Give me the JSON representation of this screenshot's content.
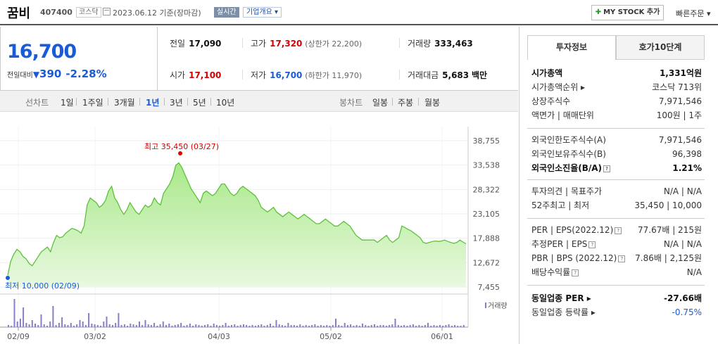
{
  "header": {
    "name": "꿈비",
    "code": "407400",
    "market": "코스닥",
    "date": "2023.06.12 기준(장마감)",
    "realtime": "실시간",
    "company_info": "기업개요 ▾",
    "mystock": "MY STOCK 추가",
    "quick_order": "빠른주문 ▾"
  },
  "price": {
    "current": "16,700",
    "change_label": "전일대비",
    "change_arrow": "▼",
    "change_value": "390",
    "change_pct": "-2.28%"
  },
  "stats": {
    "prev_label": "전일",
    "prev": "17,090",
    "high_label": "고가",
    "high": "17,320",
    "upper_limit": "(상한가 22,200)",
    "volume_label": "거래량",
    "volume": "333,463",
    "open_label": "시가",
    "open": "17,100",
    "low_label": "저가",
    "low": "16,700",
    "lower_limit": "(하한가 11,970)",
    "amount_label": "거래대금",
    "amount": "5,683",
    "amount_unit": "백만"
  },
  "periods": {
    "line_label": "선차트",
    "items": [
      "1일",
      "1주일",
      "3개월",
      "1년",
      "3년",
      "5년",
      "10년"
    ],
    "selected": "1년",
    "candle_label": "봉차트",
    "candle_items": [
      "일봉",
      "주봉",
      "월봉"
    ]
  },
  "chart_data": {
    "type": "area",
    "x_ticks": [
      "02/09",
      "03/02",
      "04/03",
      "05/02",
      "06/01"
    ],
    "y_ticks": [
      "38,755",
      "33,538",
      "28,322",
      "23,105",
      "17,888",
      "12,672",
      "7,455"
    ],
    "ylim": [
      7455,
      38755
    ],
    "max_label": "최고 35,450 (03/27)",
    "min_label": "최저 10,000 (02/09)",
    "volume_label": "거래량",
    "values": [
      10000,
      13000,
      14500,
      15500,
      15000,
      14000,
      13500,
      12500,
      12000,
      13000,
      14000,
      15000,
      15500,
      16000,
      15000,
      17000,
      18500,
      18000,
      18200,
      19000,
      19500,
      20000,
      19800,
      19500,
      19000,
      20500,
      25000,
      26500,
      26000,
      25500,
      24500,
      25000,
      26000,
      28000,
      29000,
      26500,
      25500,
      24000,
      23000,
      24000,
      25500,
      24500,
      23500,
      23000,
      24000,
      25000,
      24500,
      25000,
      26500,
      25500,
      25000,
      27500,
      28500,
      29500,
      31000,
      33500,
      34000,
      33000,
      31500,
      30000,
      28500,
      27500,
      26500,
      25500,
      27500,
      28000,
      27500,
      27000,
      27500,
      28500,
      29500,
      29500,
      28500,
      27500,
      27000,
      27500,
      28500,
      29000,
      28500,
      28000,
      27500,
      27000,
      26000,
      24500,
      24000,
      23500,
      24000,
      24500,
      23500,
      23000,
      22500,
      23000,
      23500,
      23000,
      22500,
      22000,
      22500,
      23000,
      22500,
      22000,
      21500,
      21000,
      21000,
      21500,
      22000,
      21500,
      21000,
      20500,
      20500,
      21000,
      21500,
      21000,
      20500,
      19500,
      18500,
      18000,
      17500,
      17500,
      17500,
      17500,
      17500,
      17000,
      17500,
      18000,
      18500,
      17500,
      17000,
      17500,
      18000,
      20500,
      20200,
      19800,
      19500,
      19000,
      18500,
      18000,
      17000,
      16800,
      17000,
      17200,
      17300,
      17200,
      17300,
      17500,
      17200,
      17000,
      16800,
      17000,
      17500,
      17090,
      16700
    ]
  },
  "right_panel": {
    "tab1": "투자정보",
    "tab2": "호가10단계",
    "rows1": [
      {
        "k": "시가총액",
        "v": "1,331억원",
        "bold": true
      },
      {
        "k": "시가총액순위 ▸",
        "v": "코스닥 713위"
      },
      {
        "k": "상장주식수",
        "v": "7,971,546"
      },
      {
        "k": "액면가 | 매매단위",
        "v": "100원 | 1주"
      }
    ],
    "rows2": [
      {
        "k": "외국인한도주식수(A)",
        "v": "7,971,546"
      },
      {
        "k": "외국인보유주식수(B)",
        "v": "96,398"
      },
      {
        "k": "외국인소진율(B/A)",
        "v": "1.21%",
        "bold": true,
        "q": true
      }
    ],
    "rows3": [
      {
        "k": "투자의견 | 목표주가",
        "v": "N/A | N/A"
      },
      {
        "k": "52주최고 | 최저",
        "v": "35,450 | 10,000"
      }
    ],
    "rows4": [
      {
        "k": "PER | EPS(2022.12)",
        "v": "77.67배 | 215원",
        "q": true
      },
      {
        "k": "추정PER | EPS",
        "v": "N/A | N/A",
        "q": true
      },
      {
        "k": "PBR | BPS (2022.12)",
        "v": "7.86배 | 2,125원",
        "q": true
      },
      {
        "k": "배당수익률",
        "v": "N/A",
        "q": true
      }
    ],
    "rows5": [
      {
        "k": "동일업종 PER ▸",
        "v": "-27.66배",
        "bold": true
      },
      {
        "k": "동일업종 등락률 ▸",
        "v": "-0.75%",
        "blue": true
      }
    ]
  }
}
